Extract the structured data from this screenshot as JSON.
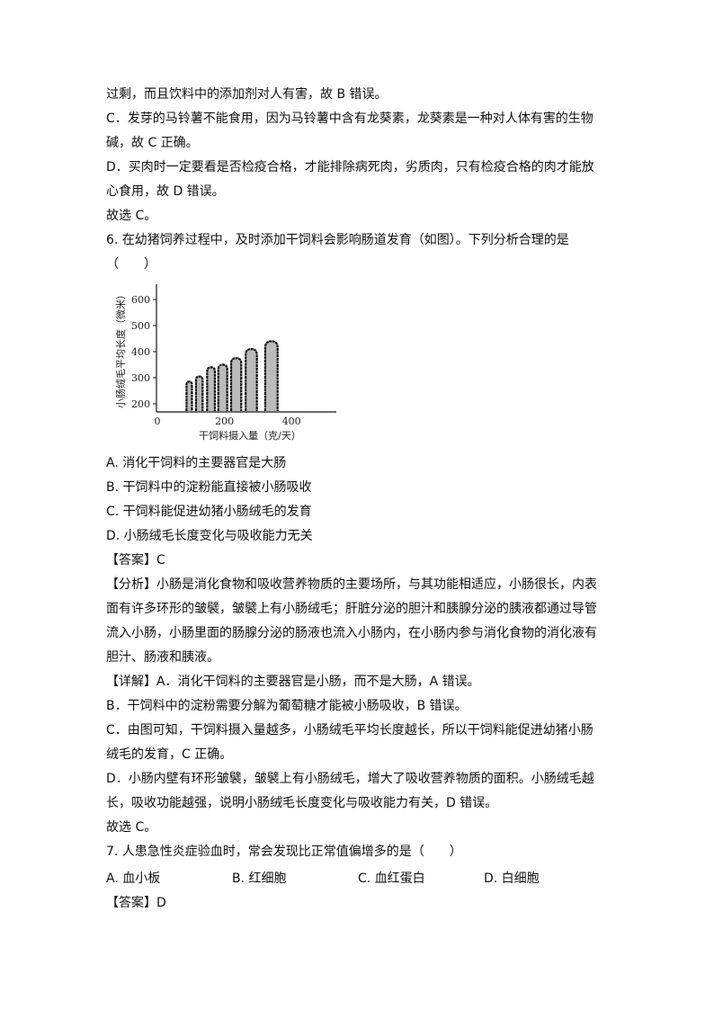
{
  "top_lines": [
    "过剩，而且饮料中的添加剂对人有害，故 B 错误。",
    "C．发芽的马铃薯不能食用，因为马铃薯中含有龙葵素，龙葵素是一种对人体有害的生物",
    "碱，故 C 正确。",
    "D．买肉时一定要看是否检疫合格，才能排除病死肉，劣质肉，只有检疫合格的肉才能放",
    "心食用，故 D 错误。",
    "故选 C。",
    "6. 在幼猪饲养过程中，及时添加干饲料会影响肠道发育（如图）。下列分析合理的是",
    "（　　）"
  ],
  "chart_data": {
    "type": "bar",
    "xlabel": "干饲料摄入量（克/天）",
    "ylabel": "小肠绒毛平均长度（微米）",
    "xticks": [
      "0",
      "200",
      "400"
    ],
    "yticks": [
      "200",
      "300",
      "400",
      "500",
      "600"
    ],
    "xlim": [
      0,
      530
    ],
    "ylim": [
      175,
      650
    ],
    "x": [
      95,
      125,
      160,
      195,
      235,
      280,
      340
    ],
    "values": [
      285,
      305,
      340,
      350,
      375,
      410,
      440
    ]
  },
  "bottom_lines": [
    "A. 消化干饲料的主要器官是大肠",
    "B. 干饲料中的淀粉能直接被小肠吸收",
    "C. 干饲料能促进幼猪小肠绒毛的发育",
    "D. 小肠绒毛长度变化与吸收能力无关",
    "【答案】C",
    "【分析】小肠是消化食物和吸收营养物质的主要场所，与其功能相适应，小肠很长，内表",
    "面有许多环形的皱襞，皱襞上有小肠绒毛；肝脏分泌的胆汁和胰腺分泌的胰液都通过导管",
    "流入小肠，小肠里面的肠腺分泌的肠液也流入小肠内，在小肠内参与消化食物的消化液有",
    "胆汁、肠液和胰液。",
    "【详解】A．消化干饲料的主要器官是小肠，而不是大肠，A 错误。",
    "B．干饲料中的淀粉需要分解为葡萄糖才能被小肠吸收，B 错误。",
    "C．由图可知，干饲料摄入量越多，小肠绒毛平均长度越长，所以干饲料能促进幼猪小肠",
    "绒毛的发育，C 正确。",
    "D．小肠内壁有环形皱襞，皱襞上有小肠绒毛，增大了吸收营养物质的面积。小肠绒毛越",
    "长，吸收功能越强，说明小肠绒毛长度变化与吸收能力有关，D 错误。",
    "故选 C。",
    "7. 人患急性炎症验血时，常会发现比正常值偏增多的是（　　）"
  ],
  "q7_options": [
    "A. 血小板",
    "B. 红细胞",
    "C. 血红蛋白",
    "D. 白细胞"
  ],
  "final_answer": "【答案】D"
}
